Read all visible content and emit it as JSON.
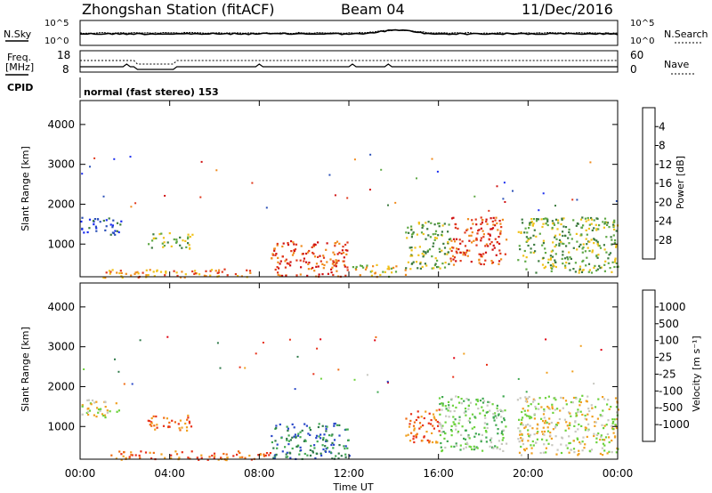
{
  "header": {
    "station": "Zhongshan Station (fitACF)",
    "beam": "Beam 04",
    "date": "11/Dec/2016"
  },
  "noise_panel": {
    "left_label": "N.Sky",
    "right_label": "N.Search",
    "left_ticks": [
      "10^5",
      "10^0"
    ],
    "right_ticks": [
      "10^5",
      "10^0"
    ]
  },
  "freq_panel": {
    "left_label_line1": "Freq.",
    "left_label_line2": "[MHz]",
    "left_ticks": [
      "18",
      "8"
    ],
    "right_label": "Nave",
    "right_ticks": [
      "60",
      "0"
    ]
  },
  "cpid": {
    "label": "CPID",
    "text": "normal (fast stereo) 153"
  },
  "x_axis": {
    "ticks": [
      "00:00",
      "04:00",
      "08:00",
      "12:00",
      "16:00",
      "20:00",
      "00:00"
    ],
    "label": "Time UT"
  },
  "chart_data": [
    {
      "type": "heatmap",
      "panel": "power",
      "ylabel": "Slant Range [km]",
      "yticks": [
        1000,
        2000,
        3000,
        4000
      ],
      "ylim": [
        180,
        4600
      ],
      "xlim_hours": [
        0,
        24
      ],
      "colorbar": {
        "label": "Power [dB]",
        "ticks": [
          "4",
          "8",
          "12",
          "16",
          "20",
          "24",
          "28"
        ],
        "colors": [
          "#1a2cf0",
          "#2d52b8",
          "#3b7a3e",
          "#5fa845",
          "#f0c21a",
          "#f08a1c",
          "#e0381c",
          "#d01010"
        ]
      },
      "echo_regions": [
        {
          "t0": 0.0,
          "t1": 1.8,
          "r0": 1250,
          "r1": 1700,
          "level": 1
        },
        {
          "t0": 3.0,
          "t1": 5.0,
          "r0": 900,
          "r1": 1300,
          "level": 3
        },
        {
          "t0": 1.0,
          "t1": 8.0,
          "r0": 180,
          "r1": 400,
          "level": 5
        },
        {
          "t0": 8.5,
          "t1": 12.0,
          "r0": 200,
          "r1": 1100,
          "level": 6
        },
        {
          "t0": 12.0,
          "t1": 14.5,
          "r0": 200,
          "r1": 500,
          "level": 4
        },
        {
          "t0": 14.5,
          "t1": 16.5,
          "r0": 400,
          "r1": 1600,
          "level": 3
        },
        {
          "t0": 16.5,
          "t1": 19.0,
          "r0": 500,
          "r1": 1700,
          "level": 6
        },
        {
          "t0": 19.5,
          "t1": 24.0,
          "r0": 300,
          "r1": 1700,
          "level": 3
        }
      ]
    },
    {
      "type": "heatmap",
      "panel": "velocity",
      "ylabel": "Slant Range [km]",
      "yticks": [
        1000,
        2000,
        3000,
        4000
      ],
      "ylim": [
        180,
        4600
      ],
      "xlim_hours": [
        0,
        24
      ],
      "colorbar": {
        "label": "Velocity [m s⁻¹]",
        "ticks": [
          "1000",
          "500",
          "100",
          "25",
          "-25",
          "-100",
          "-500",
          "-1000"
        ],
        "colors": [
          "#2a48c8",
          "#2f7a4a",
          "#3fa850",
          "#6cd23c",
          "#c8c8c0",
          "#f0a020",
          "#f06a10",
          "#e83018",
          "#e00010"
        ]
      },
      "echo_regions": [
        {
          "t0": 0.0,
          "t1": 1.8,
          "r0": 1250,
          "r1": 1700,
          "level": 4
        },
        {
          "t0": 3.0,
          "t1": 5.0,
          "r0": 900,
          "r1": 1300,
          "level": 6
        },
        {
          "t0": 1.0,
          "t1": 8.5,
          "r0": 180,
          "r1": 400,
          "level": 6
        },
        {
          "t0": 8.5,
          "t1": 12.0,
          "r0": 200,
          "r1": 1100,
          "level": 1
        },
        {
          "t0": 14.5,
          "t1": 16.0,
          "r0": 600,
          "r1": 1500,
          "level": 6
        },
        {
          "t0": 16.0,
          "t1": 19.0,
          "r0": 400,
          "r1": 1800,
          "level": 3
        },
        {
          "t0": 19.5,
          "t1": 24.0,
          "r0": 300,
          "r1": 1800,
          "level": 4
        }
      ]
    }
  ]
}
